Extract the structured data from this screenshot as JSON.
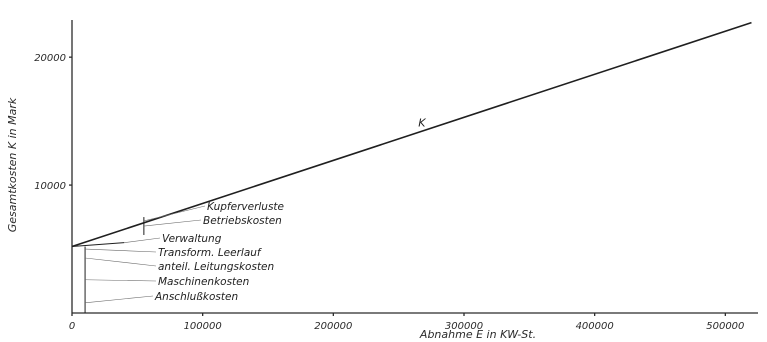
{
  "chart_data": {
    "type": "line",
    "title": "",
    "xlabel": "Abnahme E in KW-St.",
    "ylabel": "Gesamtkosten K in Mark",
    "xlim": [
      0,
      525000
    ],
    "ylim": [
      0,
      24000
    ],
    "x_ticks": [
      {
        "value": 0,
        "label": "0"
      },
      {
        "value": 100000,
        "label": "100000"
      },
      {
        "value": 200000,
        "label": "200000"
      },
      {
        "value": 300000,
        "label": "300000"
      },
      {
        "value": 400000,
        "label": "400000"
      },
      {
        "value": 500000,
        "label": "500000"
      }
    ],
    "y_ticks": [
      {
        "value": 10000,
        "label": "10000"
      },
      {
        "value": 20000,
        "label": "20000"
      }
    ],
    "grid": false,
    "series": [
      {
        "name": "K",
        "x": [
          0,
          520000
        ],
        "y": [
          5200,
          22700
        ]
      }
    ],
    "annotations": [
      {
        "text": "Kupferverluste",
        "at_x": 55000,
        "at_y": 7200
      },
      {
        "text": "Betriebskosten",
        "at_x": 55000,
        "at_y": 6800
      },
      {
        "text": "Verwaltung",
        "at_x": 40000,
        "at_y": 5500
      },
      {
        "text": "Transform. Leerlauf",
        "at_x": 10000,
        "at_y": 5000
      },
      {
        "text": "anteil. Leitungskosten",
        "at_x": 10000,
        "at_y": 4300
      },
      {
        "text": "Maschinenkosten",
        "at_x": 10000,
        "at_y": 2600
      },
      {
        "text": "Anschlußkosten",
        "at_x": 10000,
        "at_y": 800
      }
    ]
  }
}
